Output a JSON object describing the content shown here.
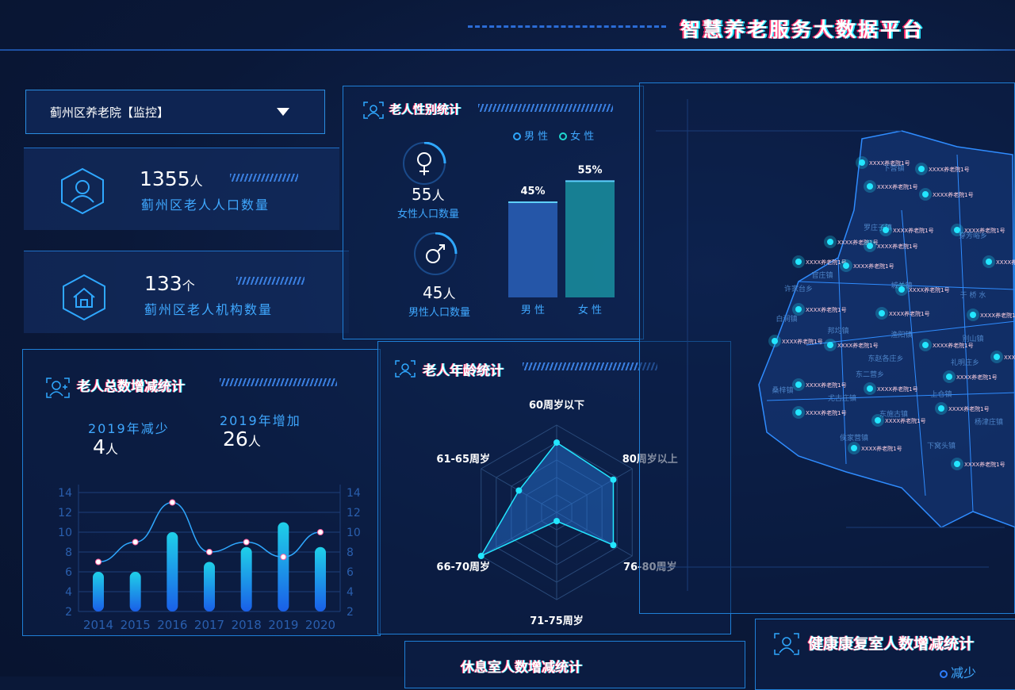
{
  "header": {
    "title": "智慧养老服务大数据平台"
  },
  "selector": {
    "value": "蓟州区养老院【监控】"
  },
  "stats": [
    {
      "value": "1355",
      "unit": "人",
      "label": "蓟州区老人人口数量",
      "icon": "user-icon"
    },
    {
      "value": "133",
      "unit": "个",
      "label": "蓟州区老人机构数量",
      "icon": "home-icon"
    }
  ],
  "total_panel": {
    "title": "老人总数增减统计",
    "decrease_label": "2019年减少",
    "decrease_value": "4",
    "decrease_unit": "人",
    "increase_label": "2019年增加",
    "increase_value": "26",
    "increase_unit": "人"
  },
  "gender_panel": {
    "title": "老人性别统计",
    "female_count": "55",
    "female_unit": "人",
    "female_label": "女性人口数量",
    "male_count": "45",
    "male_unit": "人",
    "male_label": "男性人口数量",
    "legend": [
      "男 性",
      "女 性"
    ]
  },
  "age_panel": {
    "title": "老人年龄统计"
  },
  "bottom": {
    "rest_title": "休息室人数增减统计",
    "health_title": "健康康复室人数增减统计",
    "legend_decrease": "减少"
  },
  "colors": {
    "accent": "#23e6ff",
    "bar_male": "#2a5fb8",
    "bar_female": "#1a8fa0",
    "glitch": "#ff2f6d"
  },
  "chart_data": [
    {
      "type": "bar+line",
      "categories": [
        "2014",
        "2015",
        "2016",
        "2017",
        "2018",
        "2019",
        "2020"
      ],
      "y_ticks": [
        2,
        4,
        6,
        8,
        10,
        12,
        14
      ],
      "ylim": [
        2,
        14
      ],
      "y2_ticks": [
        2,
        4,
        6,
        8,
        10,
        12,
        14
      ],
      "y2lim": [
        2,
        14
      ],
      "grid": true,
      "series": [
        {
          "type": "bar",
          "axis": "left",
          "values": [
            6,
            6,
            10,
            7,
            8.5,
            11,
            8.5
          ]
        },
        {
          "type": "line",
          "axis": "right",
          "values": [
            7,
            9,
            13,
            8,
            9,
            7.5,
            10
          ]
        }
      ]
    },
    {
      "type": "bar",
      "categories": [
        "男 性",
        "女 性"
      ],
      "values": [
        45,
        55
      ],
      "data_labels": [
        "45%",
        "55%"
      ],
      "ylim": [
        0,
        60
      ]
    },
    {
      "type": "radar",
      "categories": [
        "60周岁以下",
        "80周岁以上",
        "76-80周岁",
        "71-75周岁",
        "66-70周岁",
        "61-65周岁"
      ],
      "values": [
        0.8,
        0.75,
        0.75,
        0.1,
        1.0,
        0.5
      ],
      "max": 1
    }
  ],
  "map": {
    "regions": [
      "下营镇",
      "罗庄子镇",
      "穿芳峪乡",
      "官庄镇",
      "许家台乡",
      "城关镇",
      "于 桥 水",
      "白涧镇",
      "邦均镇",
      "渔阳镇",
      "别山镇",
      "东赵各庄乡",
      "礼明庄乡",
      "东二营乡",
      "桑梓镇",
      "尤古庄镇",
      "上仓镇",
      "东施古镇",
      "杨津庄镇",
      "侯家营镇",
      "下窝头镇"
    ],
    "marker_label": "XXXX养老院1号"
  }
}
